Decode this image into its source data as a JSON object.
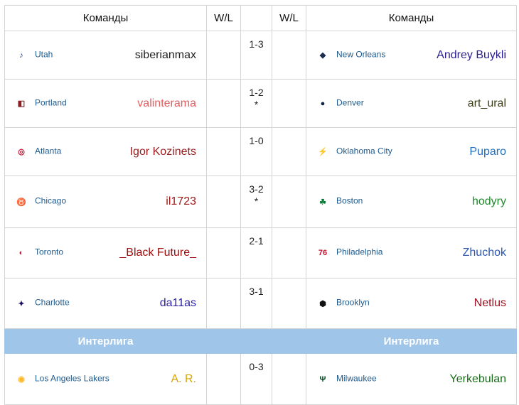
{
  "header": {
    "teams_left": "Команды",
    "wl_left": "W/L",
    "wl_right": "W/L",
    "teams_right": "Команды"
  },
  "rows": [
    {
      "left_team": "Utah",
      "left_player": "siberianmax",
      "left_color": "#222222",
      "left_icon": "jazz-logo-icon",
      "score": "1-3",
      "note": "",
      "right_team": "New Orleans",
      "right_player": "Andrey Buykli",
      "right_color": "#2a1e8f",
      "right_icon": "pelicans-logo-icon"
    },
    {
      "left_team": "Portland",
      "left_player": "valinterama",
      "left_color": "#e06060",
      "left_icon": "blazers-logo-icon",
      "score": "1-2",
      "note": "*",
      "right_team": "Denver",
      "right_player": "art_ural",
      "right_color": "#3d3d1a",
      "right_icon": "nuggets-logo-icon"
    },
    {
      "left_team": "Atlanta",
      "left_player": "Igor Kozinets",
      "left_color": "#9b1c1c",
      "left_icon": "hawks-logo-icon",
      "score": "1-0",
      "note": "",
      "right_team": "Oklahoma City",
      "right_player": "Puparo",
      "right_color": "#1f6fbf",
      "right_icon": "thunder-logo-icon"
    },
    {
      "left_team": "Chicago",
      "left_player": "il1723",
      "left_color": "#a01818",
      "left_icon": "bulls-logo-icon",
      "score": "3-2",
      "note": "*",
      "right_team": "Boston",
      "right_player": "hodyry",
      "right_color": "#1e8a2a",
      "right_icon": "celtics-logo-icon"
    },
    {
      "left_team": "Toronto",
      "left_player": "_Black Future_",
      "left_color": "#a00d0d",
      "left_icon": "raptors-logo-icon",
      "score": "2-1",
      "note": "",
      "right_team": "Philadelphia",
      "right_player": "Zhuchok",
      "right_color": "#2d55b0",
      "right_icon": "76ers-logo-icon"
    },
    {
      "left_team": "Charlotte",
      "left_player": "da11as",
      "left_color": "#2a1ea0",
      "left_icon": "hornets-logo-icon",
      "score": "3-1",
      "note": "",
      "right_team": "Brooklyn",
      "right_player": "Netlus",
      "right_color": "#9b0d1e",
      "right_icon": "nets-logo-icon"
    }
  ],
  "interliga": {
    "left": "Интерлига",
    "right": "Интерлига",
    "color": "#9fc5e8"
  },
  "last": {
    "left_team": "Los Angeles Lakers",
    "left_player": "A. R.",
    "left_color": "#d9a400",
    "left_icon": "lakers-logo-icon",
    "score": "0-3",
    "note": "",
    "right_team": "Milwaukee",
    "right_player": "Yerkebulan",
    "right_color": "#1a6e1a",
    "right_icon": "bucks-logo-icon"
  }
}
